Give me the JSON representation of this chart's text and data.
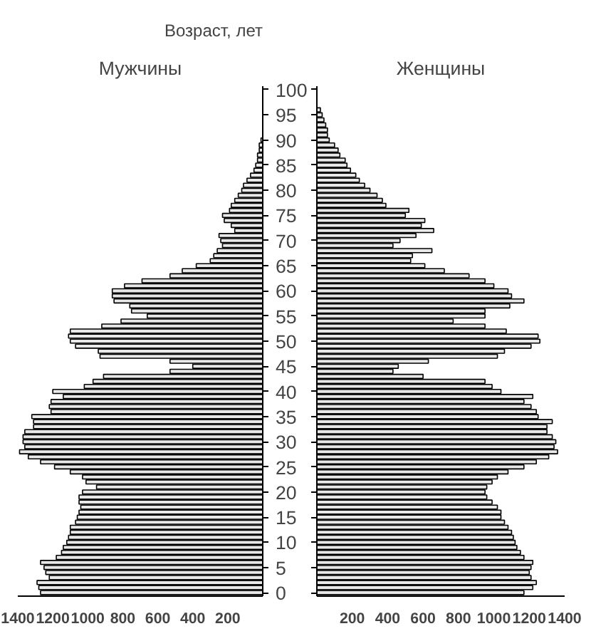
{
  "chart_data": [
    {
      "type": "bar",
      "orientation": "horizontal",
      "title": "Мужчины",
      "ylabel": "Возраст, лет",
      "categories": [
        "100",
        null,
        null,
        null,
        null,
        "95",
        null,
        null,
        null,
        null,
        "90",
        null,
        null,
        null,
        null,
        "85",
        null,
        null,
        null,
        null,
        "80",
        null,
        null,
        null,
        null,
        "75",
        null,
        null,
        null,
        null,
        "70",
        null,
        null,
        null,
        null,
        "65",
        null,
        null,
        null,
        null,
        "60",
        null,
        null,
        null,
        null,
        "55",
        null,
        null,
        null,
        null,
        "50",
        null,
        null,
        null,
        null,
        "45",
        null,
        null,
        null,
        null,
        "40",
        null,
        null,
        null,
        null,
        "35",
        null,
        null,
        null,
        null,
        "30",
        null,
        null,
        null,
        null,
        "25",
        null,
        null,
        null,
        null,
        "20",
        null,
        null,
        null,
        null,
        "15",
        null,
        null,
        null,
        null,
        "10",
        null,
        null,
        null,
        null,
        "5",
        null,
        null,
        null,
        null,
        "0"
      ],
      "series": [
        {
          "color": "#e8e8e8",
          "values": [
            0,
            0,
            0,
            0,
            0,
            0,
            0,
            0,
            0,
            0,
            10,
            20,
            20,
            30,
            30,
            40,
            50,
            70,
            90,
            110,
            120,
            140,
            160,
            180,
            190,
            230,
            220,
            180,
            160,
            250,
            240,
            230,
            260,
            280,
            300,
            380,
            460,
            530,
            690,
            790,
            860,
            860,
            850,
            760,
            750,
            660,
            810,
            920,
            1100,
            1110,
            1100,
            1070,
            940,
            930,
            530,
            400,
            530,
            910,
            970,
            1020,
            1200,
            1140,
            1210,
            1220,
            1210,
            1320,
            1310,
            1310,
            1360,
            1370,
            1370,
            1360,
            1390,
            1340,
            1270,
            1190,
            1100,
            1030,
            1010,
            950,
            1030,
            1050,
            1050,
            1040,
            1050,
            1060,
            1070,
            1100,
            1100,
            1110,
            1120,
            1140,
            1150,
            1180,
            1270,
            1250,
            1240,
            1220,
            1290,
            1280,
            1270
          ]
        }
      ],
      "xlim": [
        1400,
        0
      ],
      "xticks": [
        1400,
        1200,
        1000,
        800,
        600,
        400,
        200
      ]
    },
    {
      "type": "bar",
      "orientation": "horizontal",
      "title": "Женщины",
      "tick_labels": "x",
      "categories": [
        "100",
        null,
        null,
        null,
        null,
        "95",
        null,
        null,
        null,
        null,
        "90",
        null,
        null,
        null,
        null,
        "85",
        null,
        null,
        null,
        null,
        "80",
        null,
        null,
        null,
        null,
        "75",
        null,
        null,
        null,
        null,
        "70",
        null,
        null,
        null,
        null,
        "65",
        null,
        null,
        null,
        null,
        "60",
        null,
        null,
        null,
        null,
        "55",
        null,
        null,
        null,
        null,
        "50",
        null,
        null,
        null,
        null,
        "45",
        null,
        null,
        null,
        null,
        "40",
        null,
        null,
        null,
        null,
        "35",
        null,
        null,
        null,
        null,
        "30",
        null,
        null,
        null,
        null,
        "25",
        null,
        null,
        null,
        null,
        "20",
        null,
        null,
        null,
        null,
        "15",
        null,
        null,
        null,
        null,
        "10",
        null,
        null,
        null,
        null,
        "5",
        null,
        null,
        null,
        null,
        "0"
      ],
      "series": [
        {
          "color": "#e8e8e8",
          "values": [
            0,
            0,
            0,
            0,
            20,
            30,
            40,
            50,
            60,
            60,
            70,
            100,
            120,
            130,
            160,
            170,
            190,
            220,
            240,
            270,
            300,
            340,
            370,
            390,
            520,
            500,
            610,
            590,
            660,
            560,
            470,
            430,
            650,
            540,
            530,
            610,
            720,
            860,
            950,
            1000,
            1080,
            1100,
            1170,
            1090,
            950,
            950,
            770,
            950,
            1070,
            1250,
            1260,
            1210,
            1060,
            1020,
            630,
            460,
            430,
            600,
            950,
            990,
            1040,
            1220,
            1170,
            1210,
            1240,
            1250,
            1330,
            1300,
            1300,
            1330,
            1350,
            1340,
            1360,
            1310,
            1240,
            1170,
            1080,
            1020,
            990,
            960,
            950,
            960,
            990,
            1020,
            1040,
            1040,
            1060,
            1080,
            1100,
            1110,
            1120,
            1130,
            1150,
            1170,
            1220,
            1210,
            1200,
            1210,
            1240,
            1220,
            1170
          ]
        }
      ],
      "xlim": [
        0,
        1400
      ],
      "xticks": [
        200,
        400,
        600,
        800,
        1000,
        1200,
        1400
      ]
    }
  ]
}
